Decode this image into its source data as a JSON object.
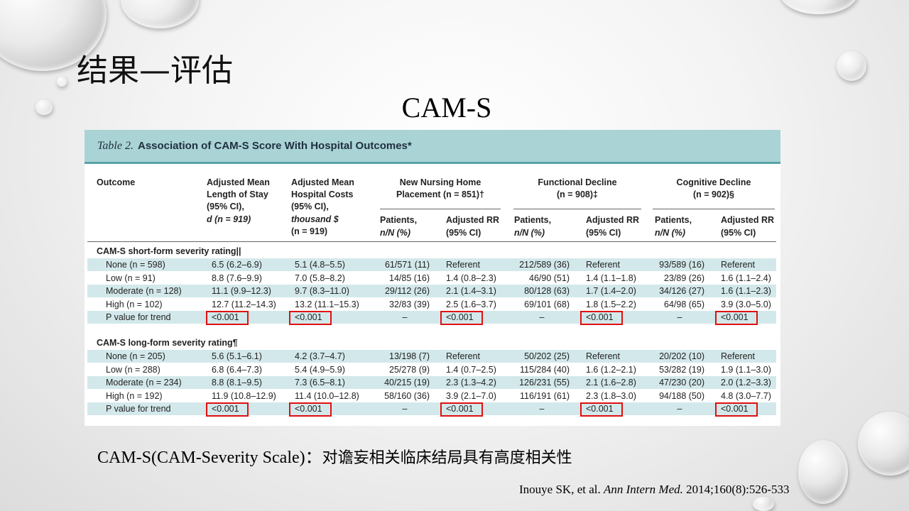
{
  "slide": {
    "title": "结果—评估",
    "subtitle": "CAM-S"
  },
  "table": {
    "number": "Table 2.",
    "caption": "Association of CAM-S Score With Hospital Outcomes*",
    "headers": {
      "outcome": "Outcome",
      "los": [
        "Adjusted Mean",
        "Length of Stay",
        "(95% CI),",
        "d (n = 919)"
      ],
      "costs": [
        "Adjusted Mean",
        "Hospital Costs",
        "(95% CI),",
        "thousand $",
        "(n = 919)"
      ],
      "nursing": [
        "New Nursing Home",
        "Placement (n = 851)†"
      ],
      "functional": [
        "Functional Decline",
        "(n = 908)‡"
      ],
      "cognitive": [
        "Cognitive Decline",
        "(n = 902)§"
      ],
      "patients": [
        "Patients,",
        "n/N (%)"
      ],
      "adjrr": [
        "Adjusted RR",
        "(95% CI)"
      ]
    },
    "short_form": {
      "title": "CAM-S short-form severity rating||",
      "rows": [
        {
          "label": "None (n = 598)",
          "los": "6.5 (6.2–6.9)",
          "cost": "5.1 (4.8–5.5)",
          "nh_p": "61/571 (11)",
          "nh_rr": "Referent",
          "fd_p": "212/589 (36)",
          "fd_rr": "Referent",
          "cd_p": "93/589 (16)",
          "cd_rr": "Referent"
        },
        {
          "label": "Low (n = 91)",
          "los": "8.8 (7.6–9.9)",
          "cost": "7.0 (5.8–8.2)",
          "nh_p": "14/85 (16)",
          "nh_rr": "1.4 (0.8–2.3)",
          "fd_p": "46/90 (51)",
          "fd_rr": "1.4 (1.1–1.8)",
          "cd_p": "23/89 (26)",
          "cd_rr": "1.6 (1.1–2.4)"
        },
        {
          "label": "Moderate (n = 128)",
          "los": "11.1 (9.9–12.3)",
          "cost": "9.7 (8.3–11.0)",
          "nh_p": "29/112 (26)",
          "nh_rr": "2.1 (1.4–3.1)",
          "fd_p": "80/128 (63)",
          "fd_rr": "1.7 (1.4–2.0)",
          "cd_p": "34/126 (27)",
          "cd_rr": "1.6 (1.1–2.3)"
        },
        {
          "label": "High (n = 102)",
          "los": "12.7 (11.2–14.3)",
          "cost": "13.2 (11.1–15.3)",
          "nh_p": "32/83 (39)",
          "nh_rr": "2.5 (1.6–3.7)",
          "fd_p": "69/101 (68)",
          "fd_rr": "1.8 (1.5–2.2)",
          "cd_p": "64/98 (65)",
          "cd_rr": "3.9 (3.0–5.0)"
        },
        {
          "label": "P value for trend",
          "los": "<0.001",
          "cost": "<0.001",
          "nh_p": "–",
          "nh_rr": "<0.001",
          "fd_p": "–",
          "fd_rr": "<0.001",
          "cd_p": "–",
          "cd_rr": "<0.001"
        }
      ]
    },
    "long_form": {
      "title": "CAM-S long-form severity rating¶",
      "rows": [
        {
          "label": "None (n = 205)",
          "los": "5.6 (5.1–6.1)",
          "cost": "4.2 (3.7–4.7)",
          "nh_p": "13/198 (7)",
          "nh_rr": "Referent",
          "fd_p": "50/202 (25)",
          "fd_rr": "Referent",
          "cd_p": "20/202 (10)",
          "cd_rr": "Referent"
        },
        {
          "label": "Low (n = 288)",
          "los": "6.8 (6.4–7.3)",
          "cost": "5.4 (4.9–5.9)",
          "nh_p": "25/278 (9)",
          "nh_rr": "1.4 (0.7–2.5)",
          "fd_p": "115/284 (40)",
          "fd_rr": "1.6 (1.2–2.1)",
          "cd_p": "53/282 (19)",
          "cd_rr": "1.9 (1.1–3.0)"
        },
        {
          "label": "Moderate (n = 234)",
          "los": "8.8 (8.1–9.5)",
          "cost": "7.3 (6.5–8.1)",
          "nh_p": "40/215 (19)",
          "nh_rr": "2.3 (1.3–4.2)",
          "fd_p": "126/231 (55)",
          "fd_rr": "2.1 (1.6–2.8)",
          "cd_p": "47/230 (20)",
          "cd_rr": "2.0 (1.2–3.3)"
        },
        {
          "label": "High (n = 192)",
          "los": "11.9 (10.8–12.9)",
          "cost": "11.4 (10.0–12.8)",
          "nh_p": "58/160 (36)",
          "nh_rr": "3.9 (2.1–7.0)",
          "fd_p": "116/191 (61)",
          "fd_rr": "2.3 (1.8–3.0)",
          "cd_p": "94/188 (50)",
          "cd_rr": "4.8 (3.0–7.7)"
        },
        {
          "label": "P value for trend",
          "los": "<0.001",
          "cost": "<0.001",
          "nh_p": "–",
          "nh_rr": "<0.001",
          "fd_p": "–",
          "fd_rr": "<0.001",
          "cd_p": "–",
          "cd_rr": "<0.001"
        }
      ]
    }
  },
  "note": {
    "lead": "CAM-S(CAM-Severity Scale)：",
    "text": "对谵妄相关临床结局具有高度相关性"
  },
  "citation": {
    "authors": "Inouye SK, et al. ",
    "journal": "Ann Intern Med.",
    "details": " 2014;160(8):526-533"
  }
}
